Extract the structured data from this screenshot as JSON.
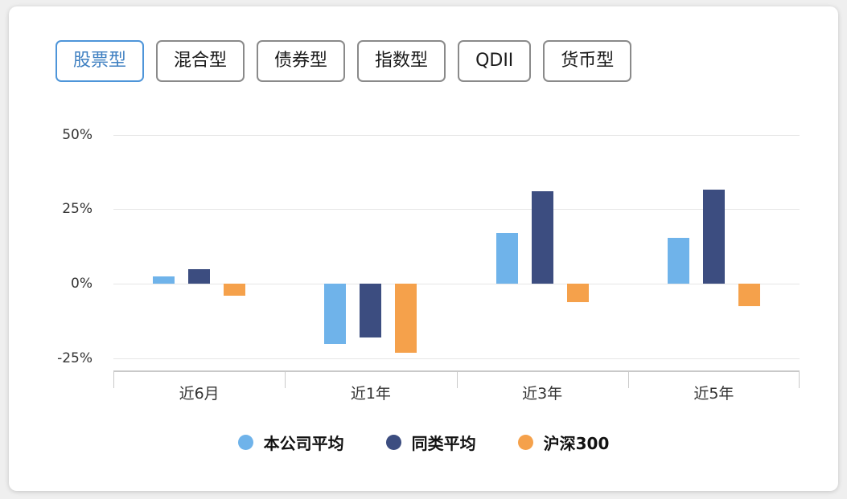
{
  "tabs": [
    {
      "label": "股票型",
      "active": true
    },
    {
      "label": "混合型",
      "active": false
    },
    {
      "label": "债券型",
      "active": false
    },
    {
      "label": "指数型",
      "active": false
    },
    {
      "label": "QDII",
      "active": false
    },
    {
      "label": "货币型",
      "active": false
    }
  ],
  "chart_data": {
    "type": "bar",
    "categories": [
      "近6月",
      "近1年",
      "近3年",
      "近5年"
    ],
    "series": [
      {
        "name": "本公司平均",
        "color": "#6FB3EA",
        "values": [
          2.5,
          -20,
          17,
          15.5
        ]
      },
      {
        "name": "同类平均",
        "color": "#3C4D80",
        "values": [
          5,
          -18,
          31,
          31.5
        ]
      },
      {
        "name": "沪深300",
        "color": "#F5A14B",
        "values": [
          -4,
          -23,
          -6,
          -7.5
        ]
      }
    ],
    "yticks": [
      50,
      25,
      0,
      -25
    ],
    "ytick_suffix": "%",
    "ymax": 55,
    "ymin": -29,
    "grid": true,
    "legend_position": "bottom",
    "title": "",
    "xlabel": "",
    "ylabel": ""
  }
}
